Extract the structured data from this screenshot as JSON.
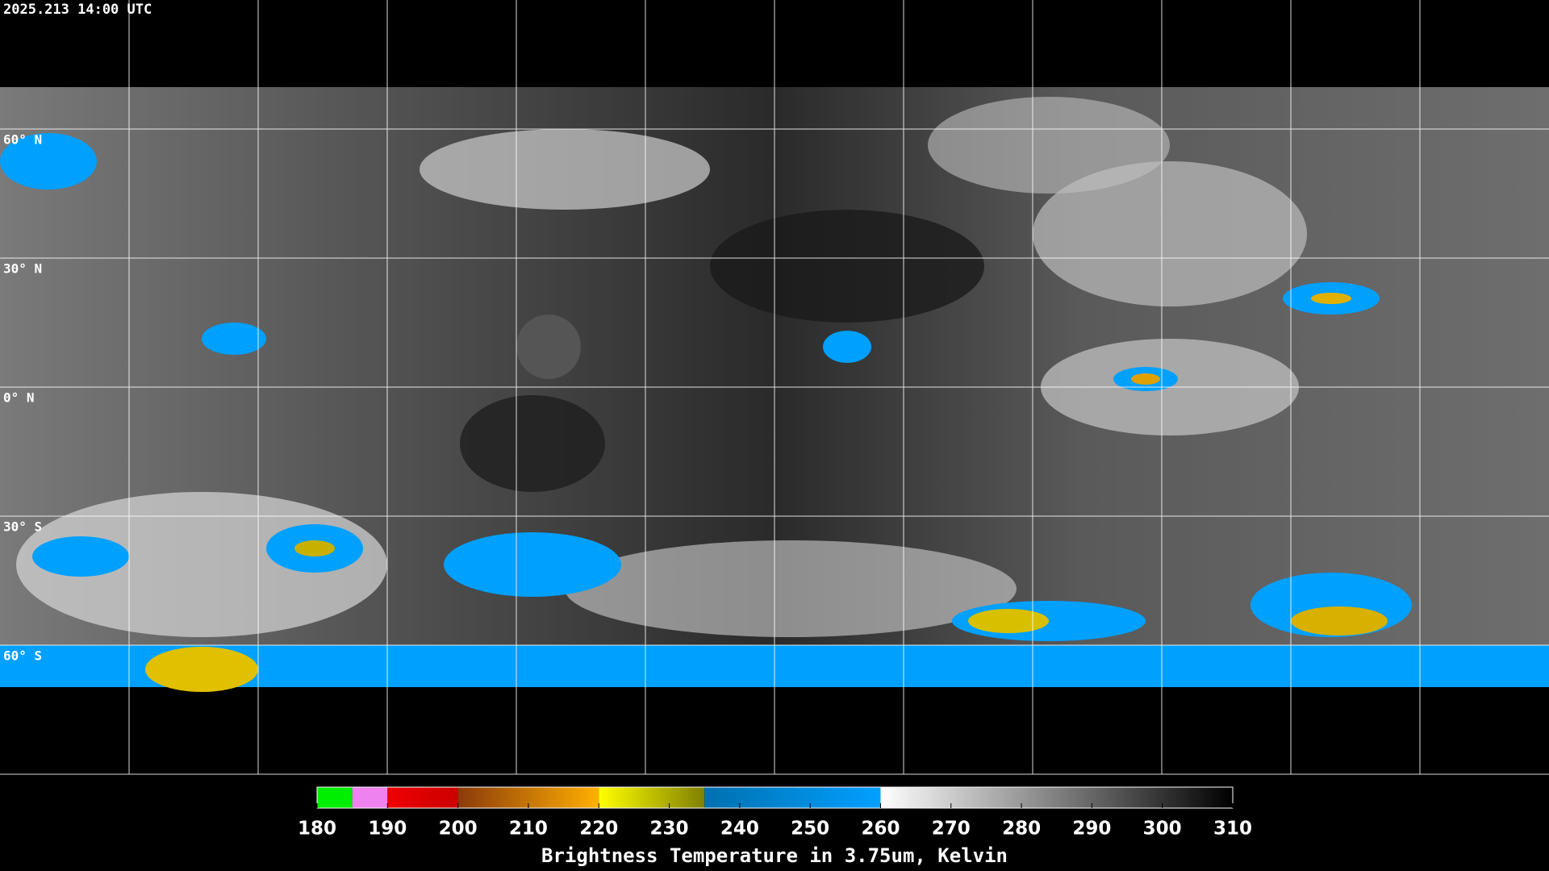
{
  "header": {
    "title": "2025.213 14:00 UTC"
  },
  "map": {
    "latitude_labels": [
      "60° N",
      "30° N",
      "0° N",
      "30° S",
      "60° S"
    ]
  },
  "colorbar": {
    "lim": [
      180,
      310
    ],
    "ticks": [
      180,
      190,
      200,
      210,
      220,
      230,
      240,
      250,
      260,
      270,
      280,
      290,
      300,
      310
    ],
    "label": "Brightness Temperature in 3.75um, Kelvin",
    "segments": [
      {
        "from": 180,
        "to": 185,
        "colors": [
          "#00ee00",
          "#00ee00"
        ]
      },
      {
        "from": 185,
        "to": 190,
        "colors": [
          "#ee82ee",
          "#ee82ee"
        ]
      },
      {
        "from": 190,
        "to": 200,
        "colors": [
          "#ee0000",
          "#cc0000"
        ]
      },
      {
        "from": 200,
        "to": 220,
        "colors": [
          "#8b3a0a",
          "#ffb000"
        ]
      },
      {
        "from": 220,
        "to": 235,
        "colors": [
          "#ffff00",
          "#808000"
        ]
      },
      {
        "from": 235,
        "to": 260,
        "colors": [
          "#0070b0",
          "#00a0ff"
        ]
      },
      {
        "from": 260,
        "to": 310,
        "colors": [
          "#ffffff",
          "#000000"
        ]
      }
    ]
  }
}
